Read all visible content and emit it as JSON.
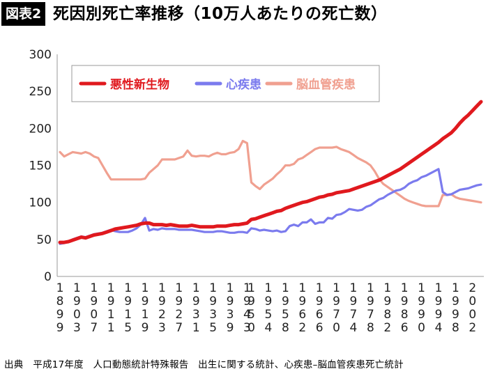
{
  "header": {
    "badge": "図表2",
    "title": "死因別死亡率推移（10万人あたりの死亡数）"
  },
  "footer": {
    "source_label": "出典",
    "source_text": "平成17年度　人口動態統計特殊報告　出生に関する統計、心疾患–脳血管疾患死亡統計"
  },
  "chart_data": {
    "type": "line",
    "title": "",
    "xlabel": "",
    "ylabel": "",
    "ylim": [
      0,
      300
    ],
    "yticks": [
      "0",
      "50",
      "100",
      "150",
      "200",
      "250",
      "300"
    ],
    "grid": false,
    "legend_placement": "top-left",
    "x_tick_labels": [
      "1899",
      "1903",
      "1907",
      "1911",
      "1915",
      "1919",
      "1923",
      "1927",
      "1931",
      "1935",
      "1939",
      "1943",
      "1950",
      "1954",
      "1958",
      "1962",
      "1966",
      "1970",
      "1974",
      "1978",
      "1982",
      "1986",
      "1990",
      "1994",
      "1998",
      "2002"
    ],
    "x": [
      1899,
      1900,
      1901,
      1902,
      1903,
      1904,
      1905,
      1906,
      1907,
      1908,
      1909,
      1910,
      1911,
      1912,
      1913,
      1914,
      1915,
      1916,
      1917,
      1918,
      1919,
      1920,
      1921,
      1922,
      1923,
      1924,
      1925,
      1926,
      1927,
      1928,
      1929,
      1930,
      1931,
      1932,
      1933,
      1934,
      1935,
      1936,
      1937,
      1938,
      1939,
      1940,
      1941,
      1942,
      1943,
      1950,
      1951,
      1952,
      1953,
      1954,
      1955,
      1956,
      1957,
      1958,
      1959,
      1960,
      1961,
      1962,
      1963,
      1964,
      1965,
      1966,
      1967,
      1968,
      1969,
      1970,
      1971,
      1972,
      1973,
      1974,
      1975,
      1976,
      1977,
      1978,
      1979,
      1980,
      1981,
      1982,
      1983,
      1984,
      1985,
      1986,
      1987,
      1988,
      1989,
      1990,
      1991,
      1992,
      1993,
      1994,
      1995,
      1996,
      1997,
      1998,
      1999,
      2000,
      2001,
      2002,
      2003,
      2004
    ],
    "series": [
      {
        "name": "悪性新生物",
        "color": "#e0191e",
        "values": [
          46,
          46,
          47,
          49,
          51,
          53,
          52,
          54,
          56,
          57,
          58,
          60,
          62,
          64,
          65,
          66,
          67,
          68,
          69,
          71,
          72,
          72,
          70,
          70,
          70,
          69,
          70,
          69,
          68,
          68,
          68,
          69,
          68,
          67,
          67,
          67,
          67,
          68,
          68,
          68,
          69,
          70,
          70,
          71,
          72,
          77,
          78,
          80,
          82,
          84,
          86,
          88,
          89,
          92,
          94,
          96,
          98,
          100,
          101,
          103,
          105,
          107,
          108,
          110,
          111,
          113,
          114,
          115,
          116,
          118,
          120,
          122,
          124,
          126,
          128,
          130,
          133,
          136,
          139,
          142,
          145,
          149,
          153,
          157,
          161,
          165,
          169,
          173,
          177,
          181,
          186,
          190,
          194,
          200,
          207,
          213,
          218,
          224,
          230,
          236
        ]
      },
      {
        "name": "心疾患",
        "color": "#7b7bee",
        "values": [
          44,
          45,
          47,
          50,
          52,
          54,
          53,
          55,
          57,
          58,
          59,
          61,
          63,
          61,
          60,
          60,
          60,
          62,
          65,
          70,
          79,
          62,
          64,
          63,
          65,
          64,
          64,
          64,
          63,
          63,
          63,
          63,
          62,
          61,
          60,
          60,
          60,
          61,
          61,
          60,
          59,
          59,
          60,
          60,
          59,
          65,
          64,
          62,
          63,
          62,
          61,
          62,
          60,
          61,
          68,
          70,
          68,
          73,
          73,
          77,
          71,
          73,
          73,
          79,
          78,
          83,
          84,
          87,
          91,
          90,
          89,
          90,
          94,
          96,
          100,
          104,
          106,
          110,
          113,
          116,
          117,
          120,
          125,
          128,
          130,
          134,
          136,
          139,
          142,
          145,
          114,
          110,
          111,
          114,
          117,
          118,
          119,
          121,
          123,
          124
        ]
      },
      {
        "name": "脳血管疾患",
        "color": "#f0a090",
        "values": [
          168,
          162,
          165,
          168,
          167,
          166,
          168,
          166,
          162,
          160,
          150,
          140,
          131,
          131,
          131,
          131,
          131,
          131,
          131,
          131,
          132,
          140,
          145,
          150,
          158,
          158,
          158,
          158,
          160,
          162,
          170,
          163,
          162,
          163,
          163,
          162,
          165,
          167,
          165,
          165,
          167,
          168,
          172,
          183,
          180,
          127,
          122,
          118,
          124,
          128,
          132,
          138,
          143,
          150,
          150,
          152,
          158,
          160,
          164,
          168,
          172,
          174,
          174,
          174,
          174,
          175,
          172,
          170,
          168,
          164,
          160,
          157,
          154,
          150,
          142,
          132,
          125,
          121,
          117,
          113,
          109,
          105,
          102,
          100,
          98,
          96,
          95,
          95,
          95,
          95,
          110,
          110,
          111,
          107,
          105,
          104,
          103,
          102,
          101,
          100
        ]
      }
    ]
  }
}
